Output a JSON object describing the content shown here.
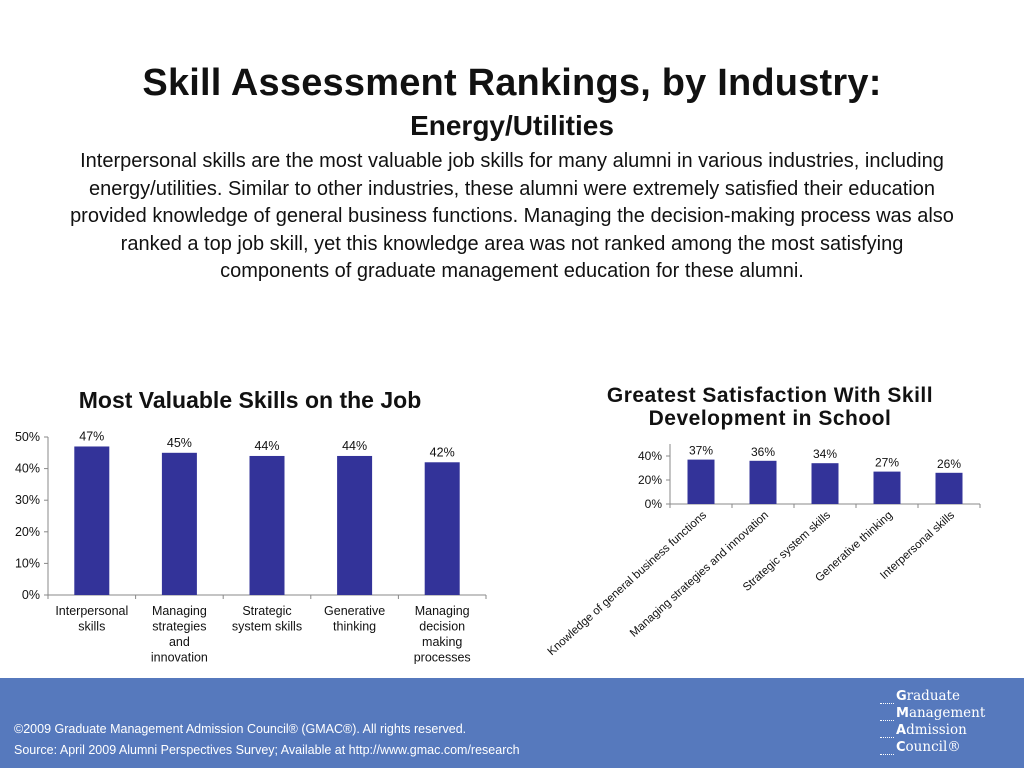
{
  "slide": {
    "title": "Skill Assessment Rankings, by Industry:",
    "subtitle": "Energy/Utilities",
    "body": "Interpersonal skills are the most valuable job skills for many alumni in various industries, including energy/utilities. Similar to other industries, these alumni were extremely satisfied their education provided knowledge of general business functions. Managing the decision-making process was also ranked a top job skill, yet this knowledge area was not ranked among the most satisfying components of graduate management education for these alumni."
  },
  "chart_data": [
    {
      "type": "bar",
      "title": "Most Valuable Skills on the Job",
      "categories": [
        "Interpersonal skills",
        "Managing strategies and innovation",
        "Strategic system skills",
        "Generative thinking",
        "Managing decision making processes"
      ],
      "category_lines": [
        [
          "Interpersonal",
          "skills"
        ],
        [
          "Managing",
          "strategies",
          "and",
          "innovation"
        ],
        [
          "Strategic",
          "system skills"
        ],
        [
          "Generative",
          "thinking"
        ],
        [
          "Managing",
          "decision",
          "making",
          "processes"
        ]
      ],
      "values": [
        47,
        45,
        44,
        44,
        42
      ],
      "data_labels": [
        "47%",
        "45%",
        "44%",
        "44%",
        "42%"
      ],
      "ylim": [
        0,
        50
      ],
      "yticks": [
        0,
        10,
        20,
        30,
        40,
        50
      ],
      "ytick_labels": [
        "0%",
        "10%",
        "20%",
        "30%",
        "40%",
        "50%"
      ],
      "bar_color": "#333399",
      "grid": false,
      "xlabel": "",
      "ylabel": ""
    },
    {
      "type": "bar",
      "title": "Greatest Satisfaction With Skill Development in School",
      "categories": [
        "Knowledge of general business functions",
        "Managing strategies and innovation",
        "Strategic system skills",
        "Generative thinking",
        "Interpersonal skills"
      ],
      "values": [
        37,
        36,
        34,
        27,
        26
      ],
      "data_labels": [
        "37%",
        "36%",
        "34%",
        "27%",
        "26%"
      ],
      "ylim": [
        0,
        50
      ],
      "yticks": [
        0,
        20,
        40
      ],
      "ytick_labels": [
        "0%",
        "20%",
        "40%"
      ],
      "bar_color": "#333399",
      "grid": false,
      "xlabel": "",
      "ylabel": ""
    }
  ],
  "footer": {
    "copyright": "©2009 Graduate Management Admission Council® (GMAC®). All rights reserved.",
    "source": "Source: April 2009 Alumni Perspectives Survey; Available at http://www.gmac.com/research",
    "background_color": "#5679bd",
    "logo": {
      "lines": [
        {
          "initial": "G",
          "rest": "raduate"
        },
        {
          "initial": "M",
          "rest": "anagement"
        },
        {
          "initial": "A",
          "rest": "dmission"
        },
        {
          "initial": "C",
          "rest": "ouncil®"
        }
      ]
    }
  }
}
